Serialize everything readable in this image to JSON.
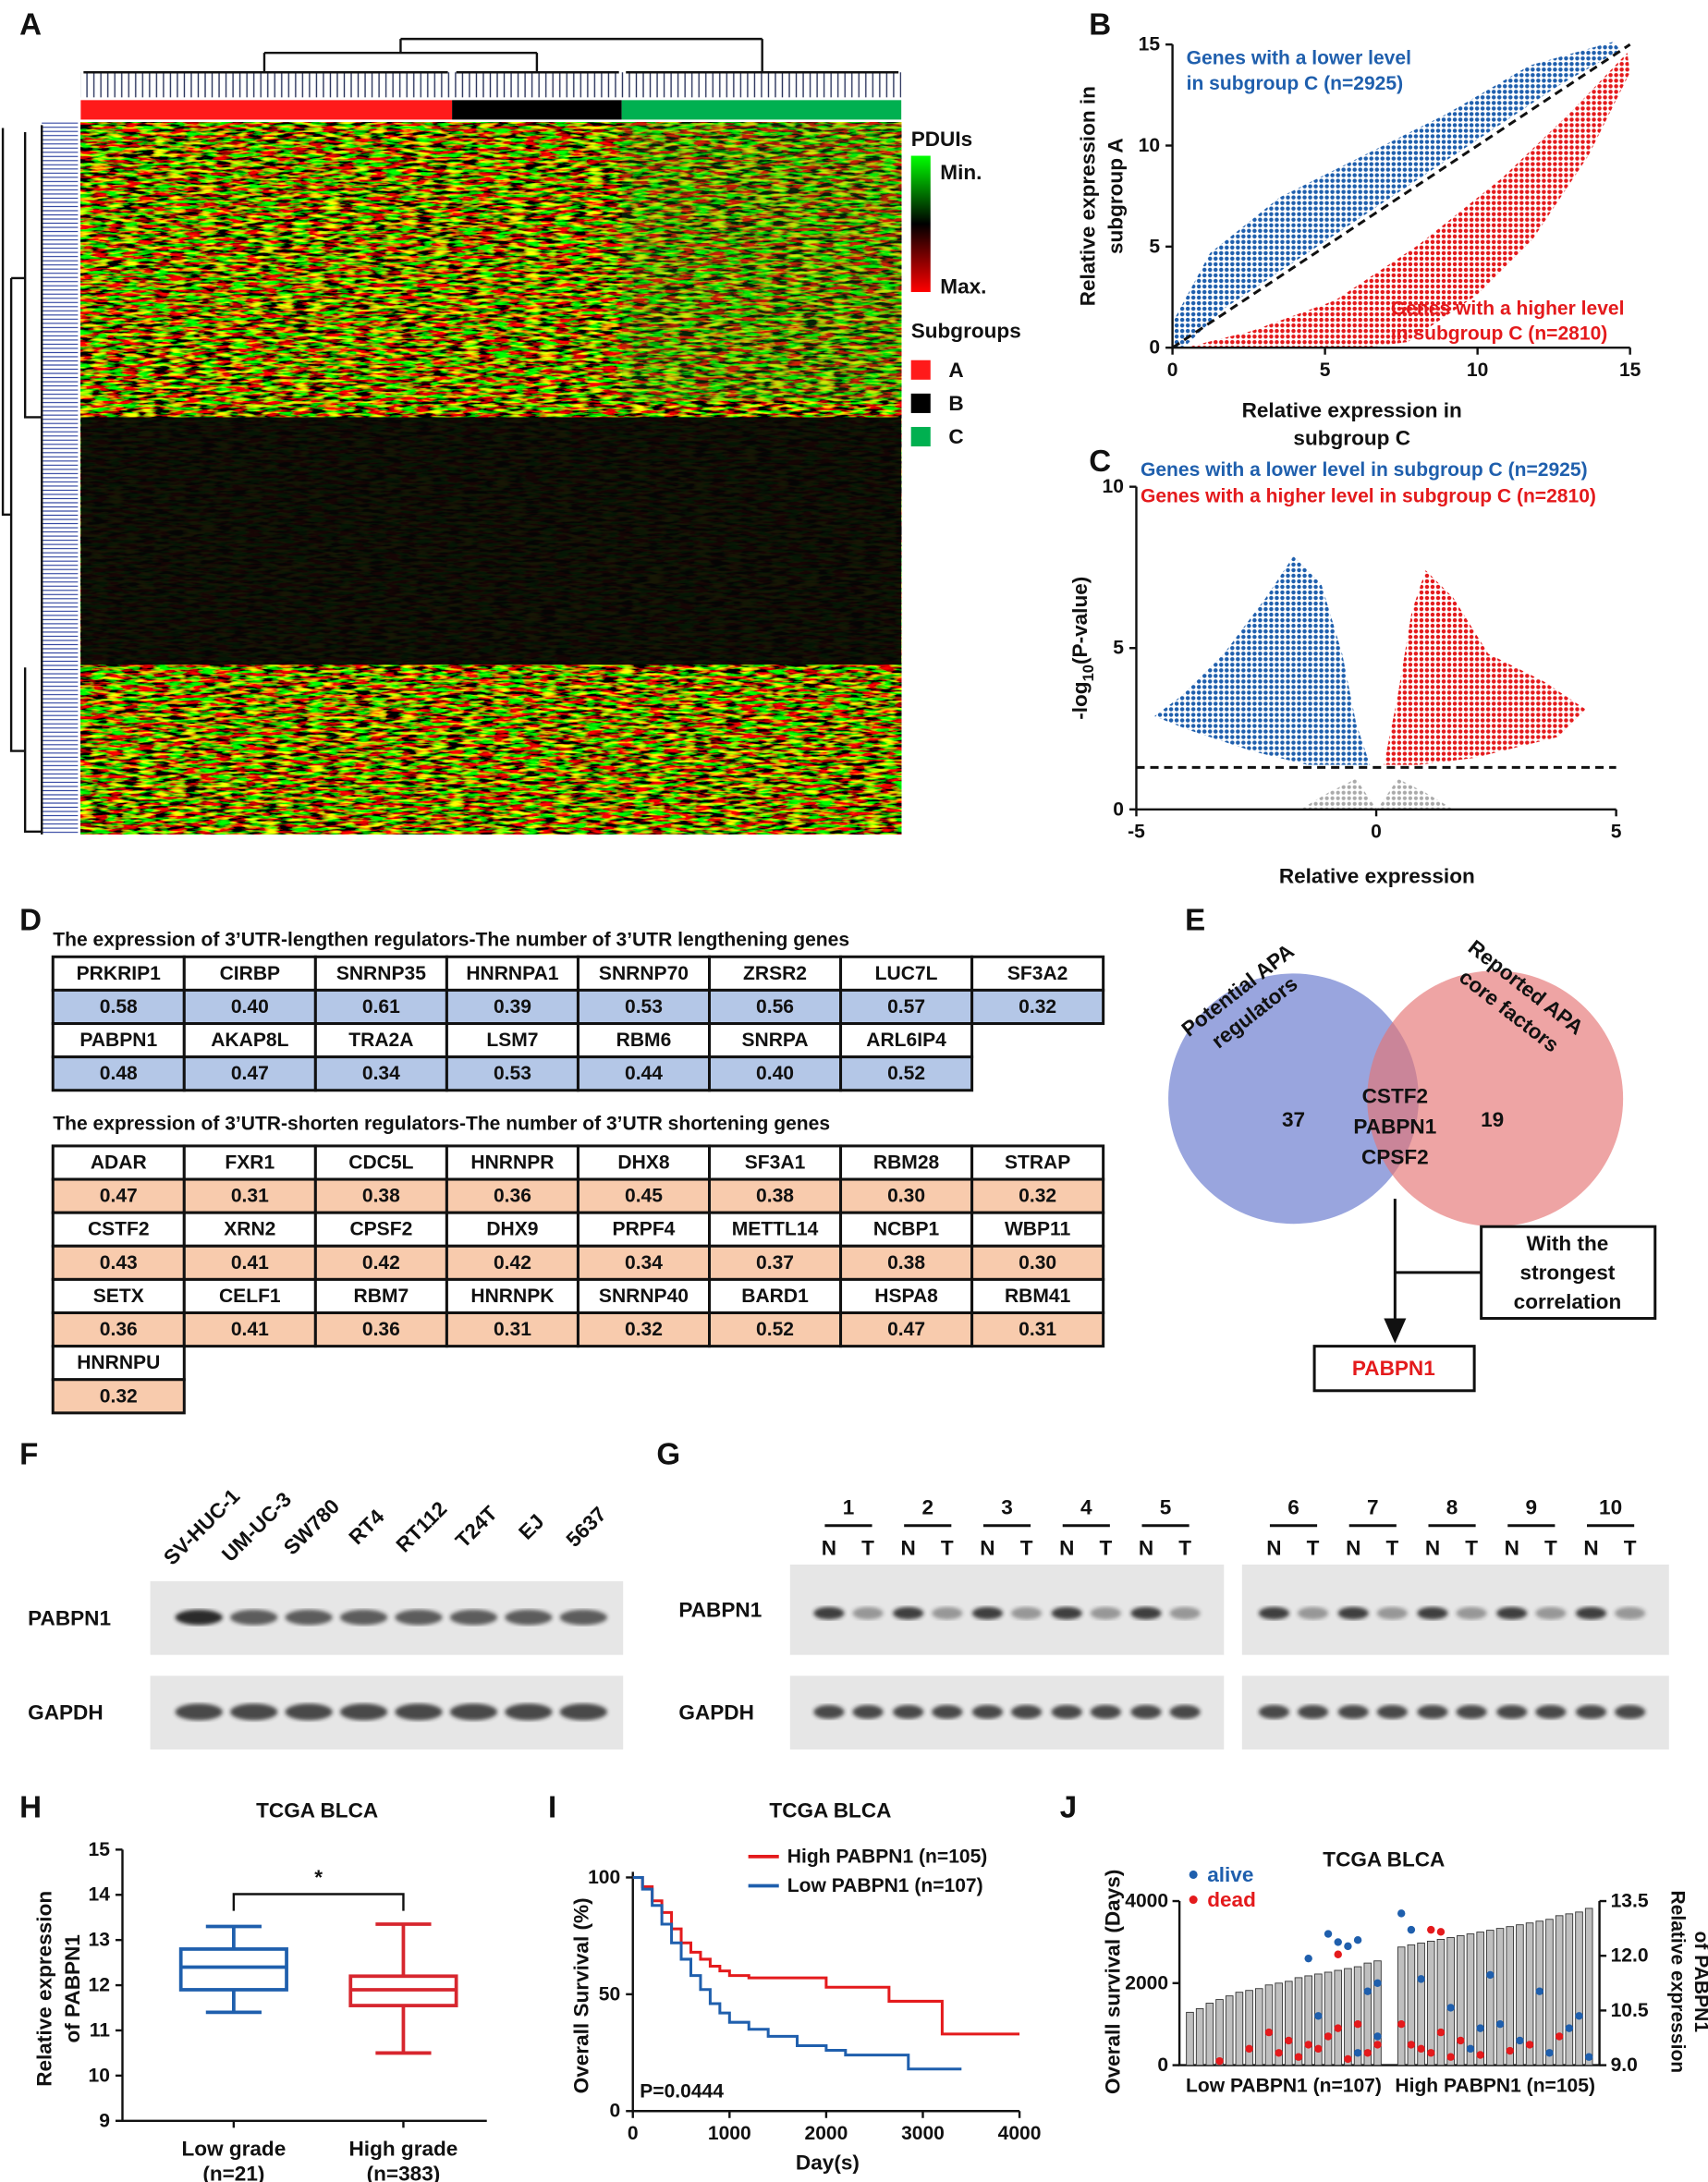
{
  "panel_labels": [
    "A",
    "B",
    "C",
    "D",
    "E",
    "F",
    "G",
    "H",
    "I",
    "J"
  ],
  "heatmap": {
    "legend_title": "PDUIs",
    "min_label": "Min.",
    "max_label": "Max.",
    "groups_title": "Subgroups",
    "groups": [
      {
        "name": "A",
        "color": "#ff1a1a"
      },
      {
        "name": "B",
        "color": "#000000"
      },
      {
        "name": "C",
        "color": "#00b050"
      }
    ]
  },
  "chart_data": [
    {
      "type": "scatter",
      "xlabel": [
        "Relative expression in",
        "subgroup C"
      ],
      "ylabel": [
        "Relative expression in",
        "subgroup A"
      ],
      "xlim": [
        0,
        15
      ],
      "ylim": [
        0,
        15
      ],
      "xticks": [
        0,
        5,
        10,
        15
      ],
      "yticks": [
        0,
        5,
        10,
        15
      ],
      "annotations": [
        {
          "lines": [
            "Genes with a lower level",
            "in subgroup C (n=2925)"
          ],
          "color": "#1f5fad"
        },
        {
          "lines": [
            "Genes with a higher level",
            "in subgroup C (n=2810)"
          ],
          "color": "#e41a1c"
        }
      ]
    },
    {
      "type": "volcano",
      "xlabel": "Relative expression",
      "ylabel": [
        "-log",
        "10",
        "(P-value)"
      ],
      "xlim": [
        -5,
        5
      ],
      "ylim": [
        0,
        10
      ],
      "xticks": [
        -5,
        0,
        5
      ],
      "yticks": [
        0,
        5,
        10
      ],
      "threshold": 1.3,
      "legend": [
        {
          "text": "Genes with a lower level in subgroup C (n=2925)",
          "color": "#1f5fad"
        },
        {
          "text": "Genes with a higher level in subgroup C (n=2810)",
          "color": "#e41a1c"
        }
      ]
    },
    {
      "type": "box",
      "title": "TCGA BLCA",
      "categories": [
        [
          "Low grade",
          "(n=21)"
        ],
        [
          "High grade",
          "(n=383)"
        ]
      ],
      "ylabel": [
        "Relative expression",
        "of PABPN1"
      ],
      "ylim": [
        9,
        15
      ],
      "yticks": [
        9,
        10,
        11,
        12,
        13,
        14,
        15
      ],
      "significance": "*",
      "series": [
        {
          "color": "#1f5fad",
          "min": 11.4,
          "q1": 11.9,
          "median": 12.4,
          "q3": 12.8,
          "max": 13.3
        },
        {
          "color": "#d7262e",
          "min": 10.5,
          "q1": 11.55,
          "median": 11.9,
          "q3": 12.2,
          "max": 13.35
        }
      ]
    },
    {
      "type": "line",
      "title": "TCGA BLCA",
      "xlabel": "Day(s)",
      "ylabel": "Overall Survival (%)",
      "annotation": "P=0.0444",
      "xlim": [
        0,
        4000
      ],
      "ylim": [
        0,
        100
      ],
      "xticks": [
        0,
        1000,
        2000,
        3000,
        4000
      ],
      "yticks": [
        0,
        50,
        100
      ],
      "series": [
        {
          "name": "High PABPN1 (n=105)",
          "color": "#e41a1c",
          "x": [
            0,
            100,
            200,
            300,
            400,
            500,
            600,
            700,
            800,
            900,
            1000,
            1200,
            1500,
            1800,
            2000,
            2500,
            2650,
            3000,
            3200,
            4000
          ],
          "values": [
            100,
            96,
            90,
            85,
            78,
            72,
            68,
            65,
            62,
            60,
            58,
            57,
            57,
            57,
            53,
            53,
            47,
            47,
            33,
            33
          ]
        },
        {
          "name": "Low PABPN1 (n=107)",
          "color": "#1f5fad",
          "x": [
            0,
            100,
            200,
            300,
            400,
            500,
            600,
            700,
            800,
            900,
            1000,
            1200,
            1400,
            1700,
            2000,
            2200,
            2800,
            2850,
            3400
          ],
          "values": [
            100,
            95,
            88,
            80,
            72,
            65,
            58,
            52,
            46,
            42,
            38,
            35,
            32,
            28,
            26,
            24,
            24,
            18,
            18
          ]
        }
      ]
    },
    {
      "type": "bar-scatter",
      "title": "TCGA BLCA",
      "ylabel": "Overall survival (Days)",
      "y2label": [
        "Relative expression",
        "of PABPN1"
      ],
      "ylim": [
        0,
        4000
      ],
      "yticks": [
        0,
        2000,
        4000
      ],
      "y2lim": [
        9,
        13.5
      ],
      "y2ticks": [
        {
          "value": 9,
          "label": "9.0"
        },
        {
          "value": 10.5,
          "label": "10.5"
        },
        {
          "value": 12,
          "label": "12.0"
        },
        {
          "value": 13.5,
          "label": "13.5"
        }
      ],
      "legend": [
        {
          "name": "alive",
          "color": "#1f5fad"
        },
        {
          "name": "dead",
          "color": "#e41a1c"
        }
      ],
      "bar_color": "#bfbfbf",
      "groups": [
        {
          "label": "Low PABPN1 (n=107)",
          "bars": {
            "axis": "y2",
            "values": [
              10.45,
              10.55,
              10.7,
              10.8,
              10.9,
              11.0,
              11.05,
              11.1,
              11.2,
              11.25,
              11.3,
              11.4,
              11.45,
              11.5,
              11.55,
              11.6,
              11.65,
              11.7,
              11.8,
              11.86
            ]
          },
          "series": [
            {
              "x": [
                12,
                14,
                15,
                16,
                17,
                18,
                19,
                13,
                17,
                19
              ],
              "values": [
                2600,
                3200,
                3000,
                2900,
                3050,
                1800,
                700,
                1200,
                300,
                2000
              ]
            },
            {
              "x": [
                3,
                6,
                8,
                9,
                10,
                11,
                12,
                13,
                14,
                15,
                16,
                17,
                18,
                19,
                15
              ],
              "values": [
                100,
                400,
                800,
                300,
                600,
                200,
                500,
                400,
                700,
                900,
                150,
                1000,
                300,
                500,
                2700
              ]
            }
          ]
        },
        {
          "label": "High PABPN1 (n=105)",
          "bars": {
            "axis": "y2",
            "values": [
              12.24,
              12.3,
              12.35,
              12.4,
              12.45,
              12.5,
              12.55,
              12.6,
              12.65,
              12.7,
              12.75,
              12.8,
              12.85,
              12.9,
              12.95,
              13.0,
              13.1,
              13.15,
              13.2,
              13.3
            ]
          },
          "series": [
            {
              "x": [
                0,
                1,
                2,
                5,
                7,
                8,
                10,
                12,
                14,
                15,
                17,
                18,
                19,
                9
              ],
              "values": [
                3700,
                3300,
                2100,
                1400,
                400,
                900,
                1000,
                600,
                1800,
                300,
                900,
                1200,
                200,
                2200
              ]
            },
            {
              "x": [
                0,
                1,
                2,
                3,
                4,
                5,
                6,
                8,
                11,
                13,
                16,
                3,
                4
              ],
              "values": [
                1000,
                500,
                400,
                300,
                800,
                200,
                600,
                250,
                350,
                500,
                700,
                3300,
                3250
              ]
            }
          ]
        }
      ]
    }
  ],
  "table_d": {
    "sections": [
      {
        "title": "The expression of 3’UTR-lengthen regulators-The number of 3’UTR lengthening genes",
        "value_color": "#b4c7e7",
        "groups": [
          {
            "names": [
              "PRKRIP1",
              "CIRBP",
              "SNRNP35",
              "HNRNPA1",
              "SNRNP70",
              "ZRSR2",
              "LUC7L",
              "SF3A2"
            ],
            "values": [
              "0.58",
              "0.40",
              "0.61",
              "0.39",
              "0.53",
              "0.56",
              "0.57",
              "0.32"
            ]
          },
          {
            "names": [
              "PABPN1",
              "AKAP8L",
              "TRA2A",
              "LSM7",
              "RBM6",
              "SNRPA",
              "ARL6IP4"
            ],
            "values": [
              "0.48",
              "0.47",
              "0.34",
              "0.53",
              "0.44",
              "0.40",
              "0.52"
            ]
          }
        ]
      },
      {
        "title": "The expression of 3’UTR-shorten regulators-The number of 3’UTR shortening genes",
        "value_color": "#f8cbad",
        "groups": [
          {
            "names": [
              "ADAR",
              "FXR1",
              "CDC5L",
              "HNRNPR",
              "DHX8",
              "SF3A1",
              "RBM28",
              "STRAP"
            ],
            "values": [
              "0.47",
              "0.31",
              "0.38",
              "0.36",
              "0.45",
              "0.38",
              "0.30",
              "0.32"
            ]
          },
          {
            "names": [
              "CSTF2",
              "XRN2",
              "CPSF2",
              "DHX9",
              "PRPF4",
              "METTL14",
              "NCBP1",
              "WBP11"
            ],
            "values": [
              "0.43",
              "0.41",
              "0.42",
              "0.42",
              "0.34",
              "0.37",
              "0.38",
              "0.30"
            ]
          },
          {
            "names": [
              "SETX",
              "CELF1",
              "RBM7",
              "HNRNPK",
              "SNRNP40",
              "BARD1",
              "HSPA8",
              "RBM41"
            ],
            "values": [
              "0.36",
              "0.41",
              "0.36",
              "0.31",
              "0.32",
              "0.52",
              "0.47",
              "0.31"
            ]
          },
          {
            "names": [
              "HNRNPU"
            ],
            "values": [
              "0.32"
            ]
          }
        ]
      }
    ]
  },
  "venn": {
    "left_label": [
      "Potential APA",
      "regulators"
    ],
    "right_label": [
      "Reported APA",
      "core factors"
    ],
    "left_count": "37",
    "right_count": "19",
    "overlap": [
      "CSTF2",
      "PABPN1",
      "CPSF2"
    ],
    "note": [
      "With the",
      "strongest",
      "correlation"
    ],
    "result": "PABPN1"
  },
  "blot_f": {
    "lanes": [
      "SV-HUC-1",
      "UM-UC-3",
      "SW780",
      "RT4",
      "RT112",
      "T24T",
      "EJ",
      "5637"
    ],
    "rows": [
      "PABPN1",
      "GAPDH"
    ]
  },
  "blot_g": {
    "pairs": [
      1,
      2,
      3,
      4,
      5,
      6,
      7,
      8,
      9,
      10
    ],
    "lane_labels": [
      "N",
      "T"
    ],
    "rows": [
      "PABPN1",
      "GAPDH"
    ]
  }
}
